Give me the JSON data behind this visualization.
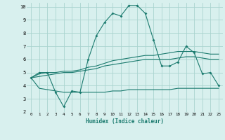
{
  "xlabel": "Humidex (Indice chaleur)",
  "x_values": [
    0,
    1,
    2,
    3,
    4,
    5,
    6,
    7,
    8,
    9,
    10,
    11,
    12,
    13,
    14,
    15,
    16,
    17,
    18,
    19,
    20,
    21,
    22,
    23
  ],
  "line1": [
    4.6,
    5.0,
    5.0,
    3.5,
    2.4,
    3.6,
    3.5,
    6.0,
    7.8,
    8.8,
    9.5,
    9.3,
    10.1,
    10.1,
    9.5,
    7.5,
    5.5,
    5.5,
    5.8,
    7.0,
    6.5,
    4.9,
    5.0,
    4.0
  ],
  "line2": [
    4.6,
    4.9,
    5.0,
    5.0,
    5.1,
    5.1,
    5.2,
    5.4,
    5.5,
    5.7,
    5.9,
    6.0,
    6.1,
    6.2,
    6.3,
    6.3,
    6.4,
    6.5,
    6.6,
    6.6,
    6.6,
    6.5,
    6.4,
    6.4
  ],
  "line3": [
    4.6,
    4.7,
    4.8,
    4.9,
    5.0,
    5.0,
    5.1,
    5.2,
    5.3,
    5.5,
    5.6,
    5.7,
    5.8,
    5.9,
    6.0,
    6.0,
    6.0,
    6.0,
    6.1,
    6.2,
    6.2,
    6.1,
    6.0,
    6.0
  ],
  "line4": [
    4.6,
    3.8,
    3.7,
    3.6,
    3.5,
    3.5,
    3.5,
    3.5,
    3.5,
    3.5,
    3.6,
    3.6,
    3.7,
    3.7,
    3.7,
    3.7,
    3.7,
    3.7,
    3.8,
    3.8,
    3.8,
    3.8,
    3.8,
    3.8
  ],
  "line_color": "#1a7a6e",
  "bg_color": "#d8f0ee",
  "grid_color": "#aad4cf",
  "ylim": [
    2,
    10.3
  ],
  "xlim": [
    -0.5,
    23.5
  ],
  "yticks": [
    2,
    3,
    4,
    5,
    6,
    7,
    8,
    9,
    10
  ],
  "xticks": [
    0,
    1,
    2,
    3,
    4,
    5,
    6,
    7,
    8,
    9,
    10,
    11,
    12,
    13,
    14,
    15,
    16,
    17,
    18,
    19,
    20,
    21,
    22,
    23
  ]
}
